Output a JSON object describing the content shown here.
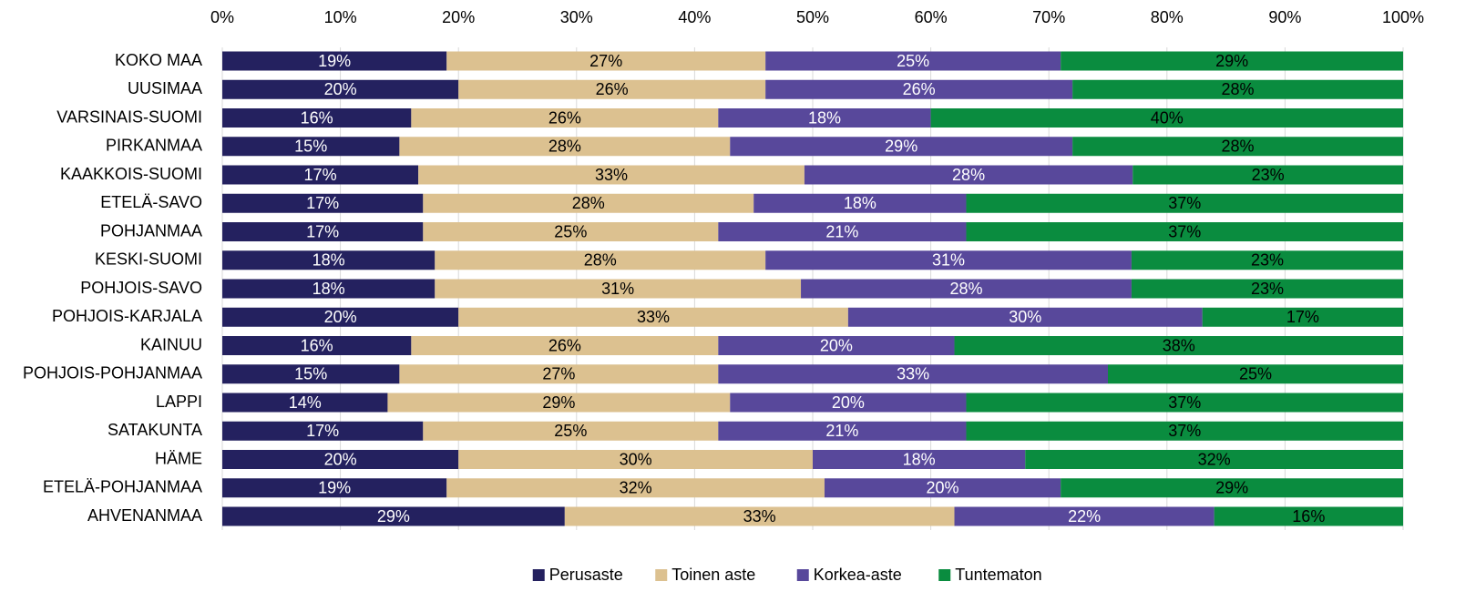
{
  "chart_data": {
    "type": "stacked_barh",
    "categories": [
      "KOKO MAA",
      "UUSIMAA",
      "VARSINAIS-SUOMI",
      "PIRKANMAA",
      "KAAKKOIS-SUOMI",
      "ETELÄ-SAVO",
      "POHJANMAA",
      "KESKI-SUOMI",
      "POHJOIS-SAVO",
      "POHJOIS-KARJALA",
      "KAINUU",
      "POHJOIS-POHJANMAA",
      "LAPPI",
      "SATAKUNTA",
      "HÄME",
      "ETELÄ-POHJANMAA",
      "AHVENANMAA"
    ],
    "series": [
      {
        "name": "Perusaste",
        "color": "#24215f",
        "label_color": "#ffffff",
        "values": [
          19,
          20,
          16,
          15,
          16.6,
          17,
          17,
          18,
          18,
          20,
          16,
          15,
          14,
          17,
          20,
          19,
          29
        ],
        "value_labels": [
          "19%",
          "20%",
          "16%",
          "15%",
          "17%",
          "17%",
          "17%",
          "18%",
          "18%",
          "20%",
          "16%",
          "15%",
          "14%",
          "17%",
          "20%",
          "19%",
          "29%"
        ]
      },
      {
        "name": "Toinen aste",
        "color": "#dcc190",
        "label_color": "#000000",
        "values": [
          27,
          26,
          26,
          28,
          32.7,
          28,
          25,
          28,
          31,
          33,
          26,
          27,
          29,
          25,
          30,
          32,
          33
        ],
        "value_labels": [
          "27%",
          "26%",
          "26%",
          "28%",
          "33%",
          "28%",
          "25%",
          "28%",
          "31%",
          "33%",
          "26%",
          "27%",
          "29%",
          "25%",
          "30%",
          "32%",
          "33%"
        ]
      },
      {
        "name": "Korkea-aste",
        "color": "#58489b",
        "label_color": "#ffffff",
        "values": [
          25,
          26,
          18,
          29,
          27.8,
          18,
          21,
          31,
          28,
          30,
          20,
          33,
          20,
          21,
          18,
          20,
          22
        ],
        "value_labels": [
          "25%",
          "26%",
          "18%",
          "29%",
          "28%",
          "18%",
          "21%",
          "31%",
          "28%",
          "30%",
          "20%",
          "33%",
          "20%",
          "21%",
          "18%",
          "20%",
          "22%"
        ]
      },
      {
        "name": "Tuntematon",
        "color": "#0a8c3f",
        "label_color": "#000000",
        "values": [
          29,
          28,
          40,
          28,
          22.9,
          37,
          37,
          23,
          23,
          17,
          38,
          25,
          37,
          37,
          32,
          29,
          16
        ],
        "value_labels": [
          "29%",
          "28%",
          "40%",
          "28%",
          "23%",
          "37%",
          "37%",
          "23%",
          "23%",
          "17%",
          "38%",
          "25%",
          "37%",
          "37%",
          "32%",
          "29%",
          "16%"
        ]
      }
    ],
    "xlim": [
      0,
      100
    ],
    "xticks": [
      {
        "value": 0,
        "label": "0%"
      },
      {
        "value": 10,
        "label": "10%"
      },
      {
        "value": 20,
        "label": "20%"
      },
      {
        "value": 30,
        "label": "30%"
      },
      {
        "value": 40,
        "label": "40%"
      },
      {
        "value": 50,
        "label": "50%"
      },
      {
        "value": 60,
        "label": "60%"
      },
      {
        "value": 70,
        "label": "70%"
      },
      {
        "value": 80,
        "label": "80%"
      },
      {
        "value": 90,
        "label": "90%"
      },
      {
        "value": 100,
        "label": "100%"
      }
    ],
    "grid": true,
    "legend": "bottom"
  }
}
